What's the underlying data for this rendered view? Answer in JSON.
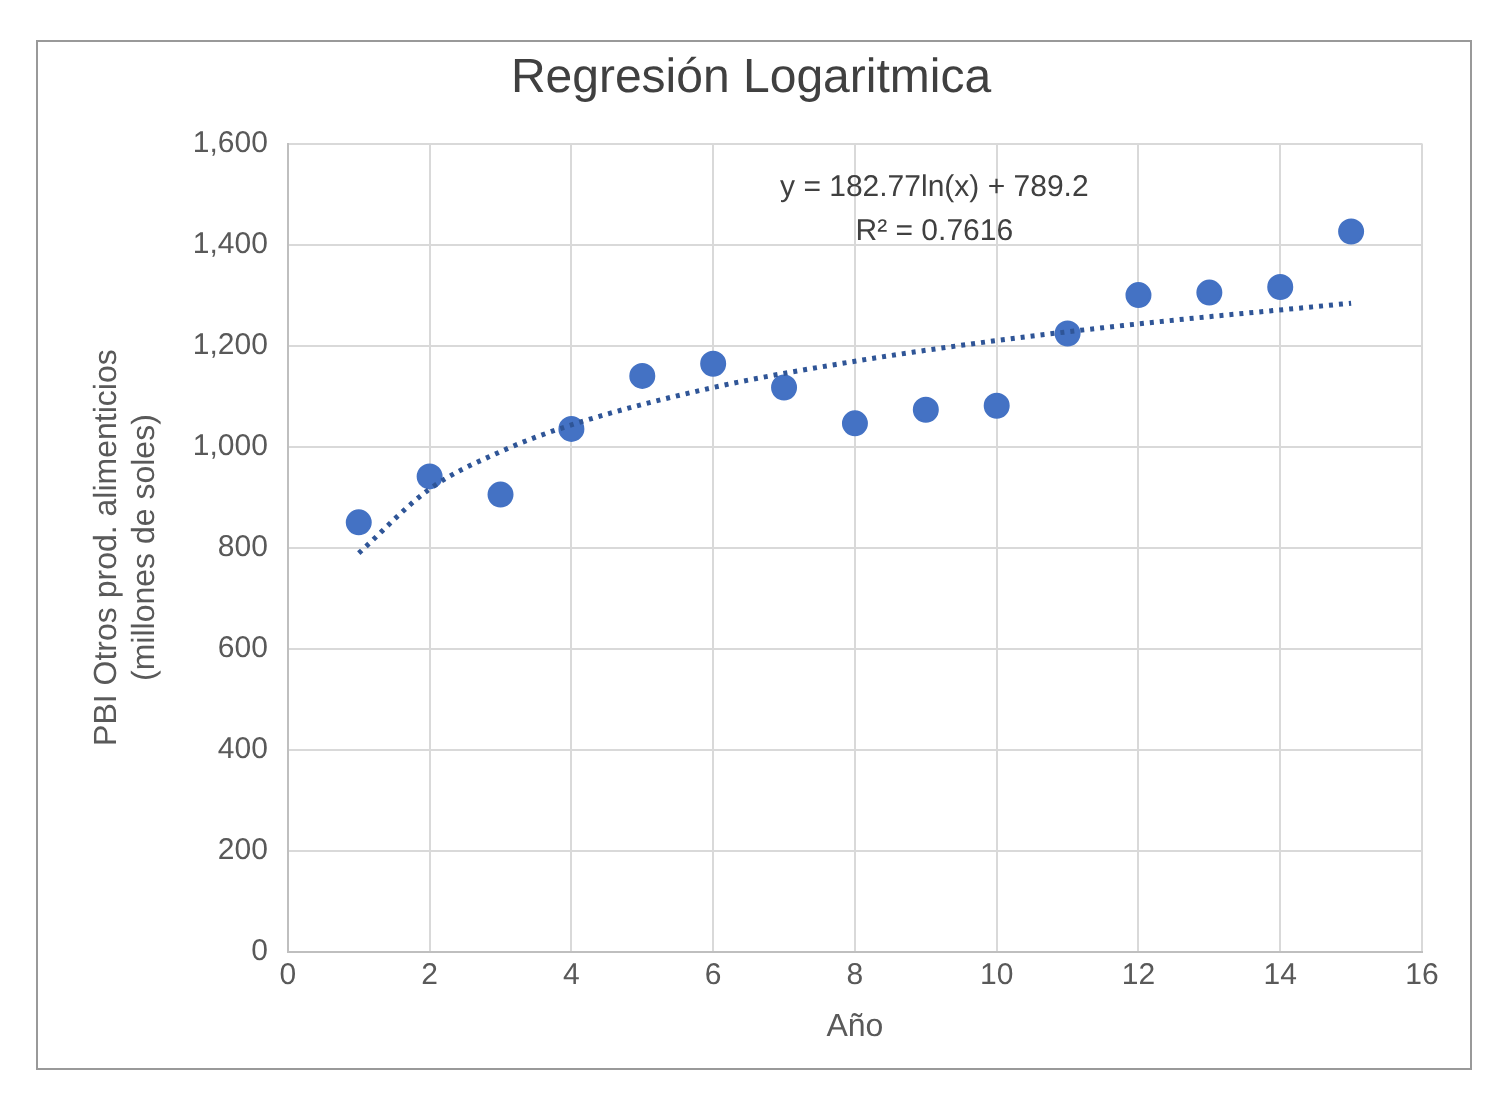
{
  "chart_data": {
    "type": "scatter",
    "title": "Regresión Logaritmica",
    "xlabel": "Año",
    "ylabel": "PBI Otros prod. alimenticios (millones de soles)",
    "x": [
      1,
      2,
      3,
      4,
      5,
      6,
      7,
      8,
      9,
      10,
      11,
      12,
      13,
      14,
      15
    ],
    "series": [
      {
        "color": "#4472c4",
        "marker": "circle",
        "values": [
          850,
          941,
          905,
          1035,
          1140,
          1164,
          1117,
          1046,
          1073,
          1081,
          1224,
          1300,
          1305,
          1316,
          1426
        ]
      },
      {
        "type": "line",
        "color": "#2f5597",
        "line_style": "dotted",
        "marker": "none",
        "x": [
          1,
          2,
          3,
          4,
          6,
          8,
          10,
          12,
          15
        ],
        "values": [
          789,
          916,
          990,
          1043,
          1117,
          1169,
          1210,
          1243,
          1284
        ]
      }
    ],
    "xlim": [
      0,
      16
    ],
    "xticks": [
      0,
      2,
      4,
      6,
      8,
      10,
      12,
      14,
      16
    ],
    "ylim": [
      0,
      1600
    ],
    "yticks": [
      {
        "value": 0,
        "label": "0"
      },
      {
        "value": 200,
        "label": "200"
      },
      {
        "value": 400,
        "label": "400"
      },
      {
        "value": 600,
        "label": "600"
      },
      {
        "value": 800,
        "label": "800"
      },
      {
        "value": 1000,
        "label": "1,000"
      },
      {
        "value": 1200,
        "label": "1,200"
      },
      {
        "value": 1400,
        "label": "1,400"
      },
      {
        "value": 1600,
        "label": "1,600"
      }
    ],
    "grid": true,
    "legend": false,
    "annotations": [
      "y = 182.77ln(x) + 789.2",
      "R² = 0.7616"
    ]
  }
}
